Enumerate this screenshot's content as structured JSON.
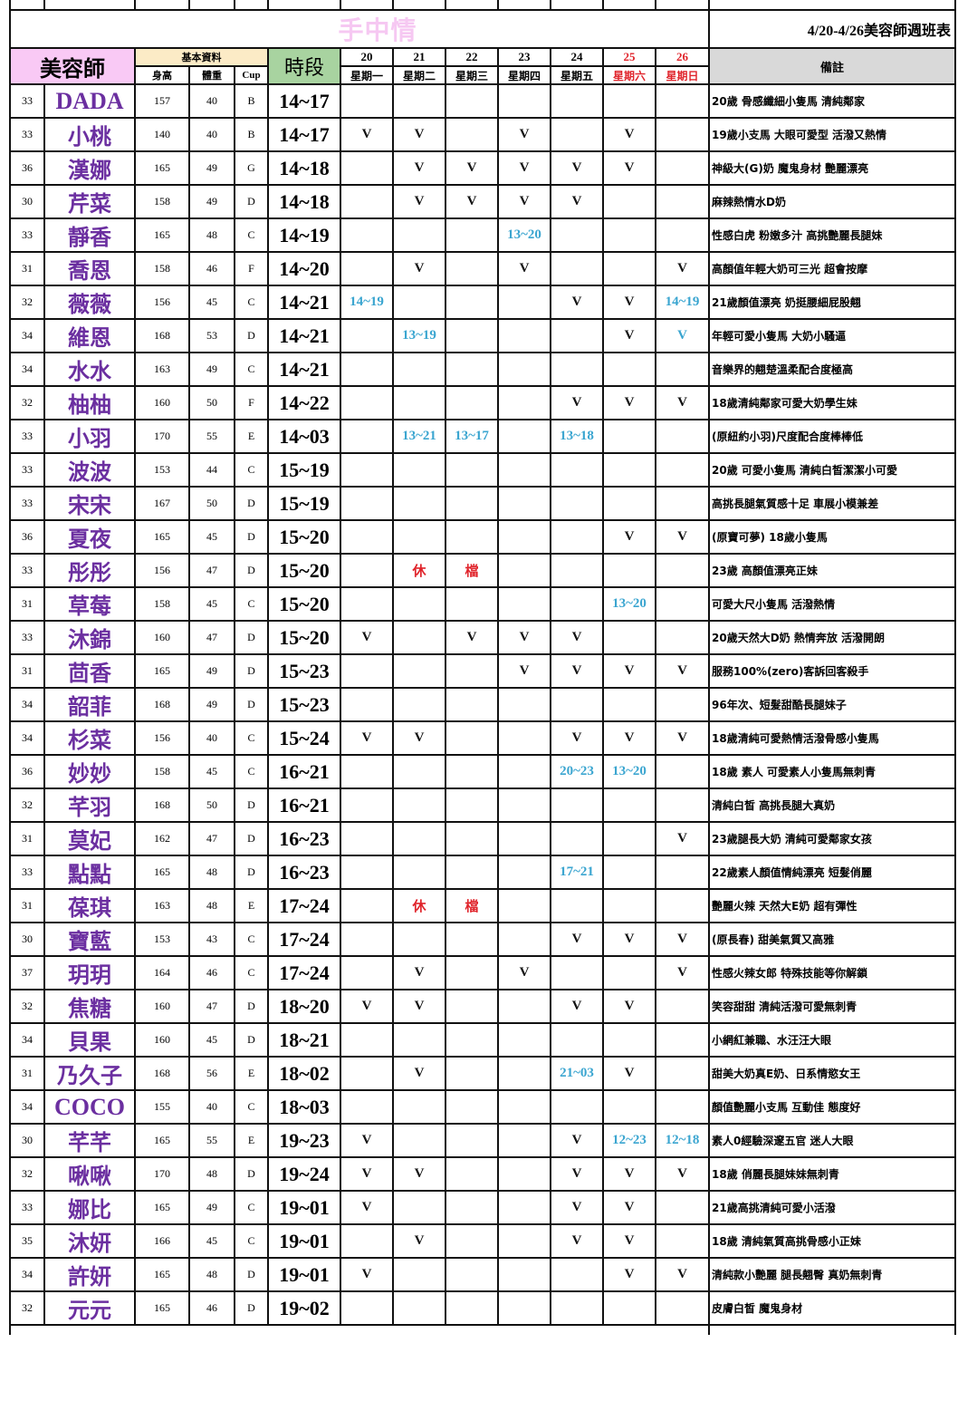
{
  "header": {
    "brand": "手中情",
    "week_title": "4/20-4/26美容師週班表",
    "col_name": "美容師",
    "col_basic": "基本資料",
    "col_height": "身高",
    "col_weight": "體重",
    "col_cup": "Cup",
    "col_slot": "時段",
    "col_note": "備註",
    "days": [
      {
        "date": "20",
        "weekday": "星期一",
        "weekend": false
      },
      {
        "date": "21",
        "weekday": "星期二",
        "weekend": false
      },
      {
        "date": "22",
        "weekday": "星期三",
        "weekend": false
      },
      {
        "date": "23",
        "weekday": "星期四",
        "weekend": false
      },
      {
        "date": "24",
        "weekday": "星期五",
        "weekend": false
      },
      {
        "date": "25",
        "weekday": "星期六",
        "weekend": true
      },
      {
        "date": "26",
        "weekday": "星期日",
        "weekend": true
      }
    ]
  },
  "colors": {
    "name": "#6b2fa0",
    "time": "#3aa5d0",
    "off": "#e0242b",
    "check": "#111111",
    "weekend": "#e0242b"
  },
  "rows": [
    {
      "age": "33",
      "name": "DADA",
      "height": "157",
      "weight": "40",
      "cup": "B",
      "slot": "14~17",
      "days": [
        "",
        "",
        "",
        "",
        "",
        "",
        ""
      ],
      "note": "20歲 骨感纖細小隻馬 清純鄰家"
    },
    {
      "age": "33",
      "name": "小桃",
      "height": "140",
      "weight": "40",
      "cup": "B",
      "slot": "14~17",
      "days": [
        "V",
        "V",
        "",
        "V",
        "",
        "V",
        ""
      ],
      "note": "19歲小支馬 大眼可愛型  活潑又熱情"
    },
    {
      "age": "36",
      "name": "漢娜",
      "height": "165",
      "weight": "49",
      "cup": "G",
      "slot": "14~18",
      "days": [
        "",
        "V",
        "V",
        "V",
        "V",
        "V",
        ""
      ],
      "note": "神級大(G)奶 魔鬼身材 艷麗漂亮"
    },
    {
      "age": "30",
      "name": "芹菜",
      "height": "158",
      "weight": "49",
      "cup": "D",
      "slot": "14~18",
      "days": [
        "",
        "V",
        "V",
        "V",
        "V",
        "",
        ""
      ],
      "note": "麻辣熱情水D奶"
    },
    {
      "age": "33",
      "name": "靜香",
      "height": "165",
      "weight": "48",
      "cup": "C",
      "slot": "14~19",
      "days": [
        "",
        "",
        "",
        "13~20",
        "",
        "",
        ""
      ],
      "note": "性感白虎 粉嫩多汁 高挑艷麗長腿妹"
    },
    {
      "age": "31",
      "name": "喬恩",
      "height": "158",
      "weight": "46",
      "cup": "F",
      "slot": "14~20",
      "days": [
        "",
        "V",
        "",
        "V",
        "",
        "",
        "V"
      ],
      "note": "高顏值年輕大奶可三光 超會按摩"
    },
    {
      "age": "32",
      "name": "薇薇",
      "height": "156",
      "weight": "45",
      "cup": "C",
      "slot": "14~21",
      "days": [
        "14~19",
        "",
        "",
        "",
        "V",
        "V",
        "14~19"
      ],
      "note": "21歲顏值漂亮 奶挺腰細屁股翹"
    },
    {
      "age": "34",
      "name": "維恩",
      "height": "168",
      "weight": "53",
      "cup": "D",
      "slot": "14~21",
      "days": [
        "",
        "13~19",
        "",
        "",
        "",
        "V",
        {
          "text": "V",
          "color": "#3aa5d0"
        }
      ],
      "note": "年輕可愛小隻馬 大奶小騷逼"
    },
    {
      "age": "34",
      "name": "水水",
      "height": "163",
      "weight": "49",
      "cup": "C",
      "slot": "14~21",
      "days": [
        "",
        "",
        "",
        "",
        "",
        "",
        ""
      ],
      "note": "音樂界的翹楚溫柔配合度極高"
    },
    {
      "age": "32",
      "name": "柚柚",
      "height": "160",
      "weight": "50",
      "cup": "F",
      "slot": "14~22",
      "days": [
        "",
        "",
        "",
        "",
        "V",
        "V",
        "V"
      ],
      "note": "18歲清純鄰家可愛大奶學生妹"
    },
    {
      "age": "33",
      "name": "小羽",
      "height": "170",
      "weight": "55",
      "cup": "E",
      "slot": "14~03",
      "days": [
        "",
        "13~21",
        "13~17",
        "",
        "13~18",
        "",
        ""
      ],
      "note": "(原紐約小羽)尺度配合度棒棒低"
    },
    {
      "age": "33",
      "name": "波波",
      "height": "153",
      "weight": "44",
      "cup": "C",
      "slot": "15~19",
      "days": [
        "",
        "",
        "",
        "",
        "",
        "",
        ""
      ],
      "note": "20歲 可愛小隻馬  清純白皙潔潔小可愛"
    },
    {
      "age": "33",
      "name": "宋宋",
      "height": "167",
      "weight": "50",
      "cup": "D",
      "slot": "15~19",
      "days": [
        "",
        "",
        "",
        "",
        "",
        "",
        ""
      ],
      "note": "高挑長腿氣質感十足 車展小模兼差"
    },
    {
      "age": "36",
      "name": "夏夜",
      "height": "165",
      "weight": "45",
      "cup": "D",
      "slot": "15~20",
      "days": [
        "",
        "",
        "",
        "",
        "",
        "V",
        "V"
      ],
      "note": "(原寶可夢) 18歲小隻馬"
    },
    {
      "age": "33",
      "name": "彤彤",
      "height": "156",
      "weight": "47",
      "cup": "D",
      "slot": "15~20",
      "days": [
        "",
        "休",
        "檔",
        "",
        "",
        "",
        ""
      ],
      "note": "23歲 高顏值漂亮正妹"
    },
    {
      "age": "31",
      "name": "草莓",
      "height": "158",
      "weight": "45",
      "cup": "C",
      "slot": "15~20",
      "days": [
        "",
        "",
        "",
        "",
        "",
        "13~20",
        ""
      ],
      "note": "可愛大尺小隻馬 活潑熱情"
    },
    {
      "age": "33",
      "name": "沐錦",
      "height": "160",
      "weight": "47",
      "cup": "D",
      "slot": "15~20",
      "days": [
        "V",
        "",
        "V",
        "V",
        "V",
        "",
        ""
      ],
      "note": "20歲天然大D奶 熱情奔放 活潑開朗"
    },
    {
      "age": "31",
      "name": "茴香",
      "height": "165",
      "weight": "49",
      "cup": "D",
      "slot": "15~23",
      "days": [
        "",
        "",
        "",
        "V",
        "V",
        "V",
        "V"
      ],
      "note": "服務100%(zero)客訴回客殺手"
    },
    {
      "age": "34",
      "name": "韶菲",
      "height": "168",
      "weight": "49",
      "cup": "D",
      "slot": "15~23",
      "days": [
        "",
        "",
        "",
        "",
        "",
        "",
        ""
      ],
      "note": "96年次、短髮甜酷長腿妹子"
    },
    {
      "age": "34",
      "name": "杉菜",
      "height": "156",
      "weight": "40",
      "cup": "C",
      "slot": "15~24",
      "days": [
        "V",
        "V",
        "",
        "",
        "V",
        "V",
        "V"
      ],
      "note": "18歲清純可愛熱情活潑骨感小隻馬"
    },
    {
      "age": "36",
      "name": "妙妙",
      "height": "158",
      "weight": "45",
      "cup": "C",
      "slot": "16~21",
      "days": [
        "",
        "",
        "",
        "",
        "20~23",
        "13~20",
        ""
      ],
      "note": "18歲 素人 可愛素人小隻馬無刺青"
    },
    {
      "age": "32",
      "name": "芊羽",
      "height": "168",
      "weight": "50",
      "cup": "D",
      "slot": "16~21",
      "days": [
        "",
        "",
        "",
        "",
        "",
        "",
        ""
      ],
      "note": "清純白皙 高挑長腿大真奶"
    },
    {
      "age": "31",
      "name": "莫妃",
      "height": "162",
      "weight": "47",
      "cup": "D",
      "slot": "16~23",
      "days": [
        "",
        "",
        "",
        "",
        "",
        "",
        "V"
      ],
      "note": "23歲腿長大奶 清純可愛鄰家女孩"
    },
    {
      "age": "33",
      "name": "點點",
      "height": "165",
      "weight": "48",
      "cup": "D",
      "slot": "16~23",
      "days": [
        "",
        "",
        "",
        "",
        "17~21",
        "",
        ""
      ],
      "note": "22歲素人顏值情純漂亮 短髮俏麗"
    },
    {
      "age": "31",
      "name": "葆琪",
      "height": "163",
      "weight": "48",
      "cup": "E",
      "slot": "17~24",
      "days": [
        "",
        "休",
        "檔",
        "",
        "",
        "",
        ""
      ],
      "note": "艷麗火辣 天然大E奶 超有彈性"
    },
    {
      "age": "30",
      "name": "寶藍",
      "height": "153",
      "weight": "43",
      "cup": "C",
      "slot": "17~24",
      "days": [
        "",
        "",
        "",
        "",
        "V",
        "V",
        "V"
      ],
      "note": "(原長春) 甜美氣質又高雅"
    },
    {
      "age": "37",
      "name": "玥玥",
      "height": "164",
      "weight": "46",
      "cup": "C",
      "slot": "17~24",
      "days": [
        "",
        "V",
        "",
        "V",
        "",
        "",
        "V"
      ],
      "note": "性感火辣女郎 特殊技能等你解鎖"
    },
    {
      "age": "32",
      "name": "焦糖",
      "height": "160",
      "weight": "47",
      "cup": "D",
      "slot": "18~20",
      "days": [
        "V",
        "V",
        "",
        "",
        "V",
        "V",
        ""
      ],
      "note": "笑容甜甜 清純活潑可愛無刺青"
    },
    {
      "age": "34",
      "name": "貝果",
      "height": "160",
      "weight": "45",
      "cup": "D",
      "slot": "18~21",
      "days": [
        "",
        "",
        "",
        "",
        "",
        "",
        ""
      ],
      "note": "小網紅兼職、水汪汪大眼"
    },
    {
      "age": "31",
      "name": "乃久子",
      "height": "168",
      "weight": "56",
      "cup": "E",
      "slot": "18~02",
      "days": [
        "",
        "V",
        "",
        "",
        "21~03",
        "V",
        ""
      ],
      "note": "甜美大奶真E奶、日系情慾女王"
    },
    {
      "age": "34",
      "name": "COCO",
      "height": "155",
      "weight": "40",
      "cup": "C",
      "slot": "18~03",
      "days": [
        "",
        "",
        "",
        "",
        "",
        "",
        ""
      ],
      "note": "顏值艷麗小支馬 互動佳 態度好"
    },
    {
      "age": "30",
      "name": "芊芊",
      "height": "165",
      "weight": "55",
      "cup": "E",
      "slot": "19~23",
      "days": [
        "V",
        "",
        "",
        "",
        "V",
        "12~23",
        "12~18"
      ],
      "note": "素人0經驗深邃五官 迷人大眼"
    },
    {
      "age": "32",
      "name": "啾啾",
      "height": "170",
      "weight": "48",
      "cup": "D",
      "slot": "19~24",
      "days": [
        "V",
        "V",
        "",
        "",
        "V",
        "V",
        "V"
      ],
      "note": "18歲 俏麗長腿妹妹無刺青"
    },
    {
      "age": "33",
      "name": "娜比",
      "height": "165",
      "weight": "49",
      "cup": "C",
      "slot": "19~01",
      "days": [
        "V",
        "",
        "",
        "",
        "V",
        "V",
        ""
      ],
      "note": "21歲高挑清純可愛小活潑"
    },
    {
      "age": "35",
      "name": "沐妍",
      "height": "166",
      "weight": "45",
      "cup": "C",
      "slot": "19~01",
      "days": [
        "",
        "V",
        "",
        "",
        "V",
        "V",
        ""
      ],
      "note": "18歲 清純氣質高挑骨感小正妹"
    },
    {
      "age": "34",
      "name": "許妍",
      "height": "165",
      "weight": "48",
      "cup": "D",
      "slot": "19~01",
      "days": [
        "V",
        "",
        "",
        "",
        "",
        "V",
        "V"
      ],
      "note": "清純款小艷麗 腿長翹臀 真奶無刺青"
    },
    {
      "age": "32",
      "name": "元元",
      "height": "165",
      "weight": "46",
      "cup": "D",
      "slot": "19~02",
      "days": [
        "",
        "",
        "",
        "",
        "",
        "",
        ""
      ],
      "note": "皮膚白皙 魔鬼身材"
    }
  ]
}
